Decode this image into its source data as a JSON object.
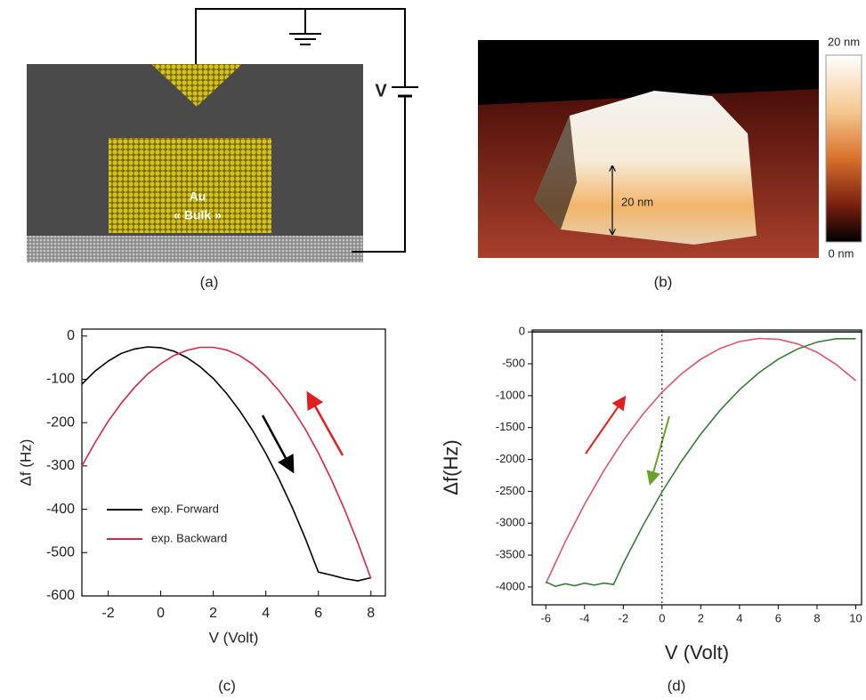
{
  "panels": {
    "a": {
      "label": "(a)",
      "voltage": "V",
      "block_text": [
        "Au",
        "« Bulk »"
      ]
    },
    "b": {
      "label": "(b)",
      "scale_max": "20 nm",
      "scale_min": "0 nm",
      "height_label": "20 nm"
    }
  },
  "chart_data": [
    {
      "type": "line",
      "panel_label": "(c)",
      "x_label": "V (Volt)",
      "y_label": "Δf (Hz)",
      "xlim": [
        -3,
        8.55
      ],
      "ylim": [
        -600,
        16
      ],
      "xticks": [
        -2,
        0,
        2,
        4,
        6,
        8
      ],
      "yticks": [
        0,
        -100,
        -200,
        -300,
        -400,
        -500,
        -600
      ],
      "legend": "lower left",
      "x": [
        -3,
        -2.5,
        -2,
        -1.5,
        -1,
        -0.5,
        0,
        0.5,
        1,
        1.5,
        2,
        2.5,
        3,
        3.5,
        4,
        4.5,
        5,
        5.5,
        6,
        6.5,
        7,
        7.5,
        8
      ],
      "series": [
        {
          "name": "exp. Forward",
          "color": "#000000",
          "values": [
            -111,
            -81,
            -58,
            -40,
            -30,
            -25,
            -27,
            -35,
            -50,
            -71,
            -98,
            -132,
            -172,
            -218,
            -271,
            -330,
            -395,
            -467,
            -545,
            -552,
            -560,
            -565,
            -558
          ]
        },
        {
          "name": "exp. Backward",
          "color": "#d02a4a",
          "values": [
            -300,
            -246,
            -197,
            -155,
            -119,
            -88,
            -64,
            -45,
            -33,
            -26,
            -26,
            -32,
            -45,
            -65,
            -92,
            -126,
            -167,
            -215,
            -270,
            -332,
            -401,
            -477,
            -560
          ]
        }
      ]
    },
    {
      "type": "line",
      "panel_label": "(d)",
      "x_label": "V (Volt)",
      "y_label": "Δf(Hz)",
      "xlim": [
        -6.7,
        10.3
      ],
      "ylim": [
        -4280,
        30
      ],
      "xticks": [
        -6,
        -4,
        -2,
        0,
        2,
        4,
        6,
        8,
        10
      ],
      "yticks": [
        0,
        -500,
        -1000,
        -1500,
        -2000,
        -2500,
        -3000,
        -3500,
        -4000
      ],
      "zero_lines": true,
      "series": [
        {
          "color": "#d9566e",
          "x": [
            -6,
            -5,
            -4,
            -3,
            -2,
            -1,
            0,
            1,
            2,
            3,
            4,
            5,
            6,
            7,
            8,
            9,
            10
          ],
          "values": [
            -3950,
            -3294,
            -2704,
            -2174,
            -1704,
            -1295,
            -946,
            -657,
            -428,
            -259,
            -151,
            -103,
            -115,
            -187,
            -319,
            -512,
            -765
          ]
        },
        {
          "color": "#3b7a3b",
          "x": [
            -6,
            -5.5,
            -5,
            -4.5,
            -4,
            -3.5,
            -3,
            -2.5,
            -2,
            -1,
            0,
            1,
            2,
            3,
            4,
            5,
            6,
            7,
            8,
            9,
            10
          ],
          "values": [
            -3920,
            -3990,
            -3950,
            -3980,
            -3940,
            -3970,
            -3940,
            -3960,
            -3631,
            -3044,
            -2510,
            -2029,
            -1602,
            -1228,
            -908,
            -641,
            -427,
            -267,
            -160,
            -107,
            -107
          ]
        }
      ]
    }
  ]
}
